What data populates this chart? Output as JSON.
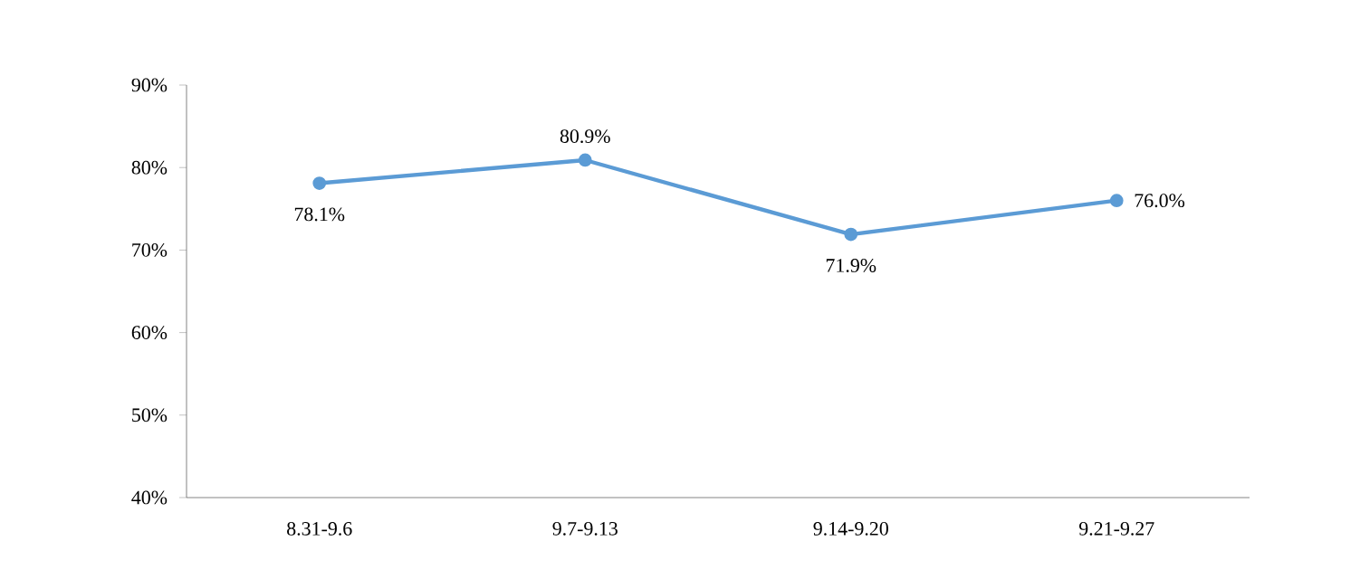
{
  "chart_data": {
    "type": "line",
    "categories": [
      "8.31-9.6",
      "9.7-9.13",
      "9.14-9.20",
      "9.21-9.27"
    ],
    "series": [
      {
        "color": "#5b9bd5",
        "values": [
          78.1,
          80.9,
          71.9,
          76.0
        ],
        "value_labels": [
          "78.1%",
          "80.9%",
          "71.9%",
          "76.0%"
        ]
      }
    ],
    "ylim": [
      40,
      90
    ],
    "yticks": [
      {
        "value": 40,
        "label": "40%"
      },
      {
        "value": 50,
        "label": "50%"
      },
      {
        "value": 60,
        "label": "60%"
      },
      {
        "value": 70,
        "label": "70%"
      },
      {
        "value": 80,
        "label": "80%"
      },
      {
        "value": 90,
        "label": "90%"
      }
    ],
    "marker": "circle",
    "line_style": "solid",
    "grid": false
  }
}
